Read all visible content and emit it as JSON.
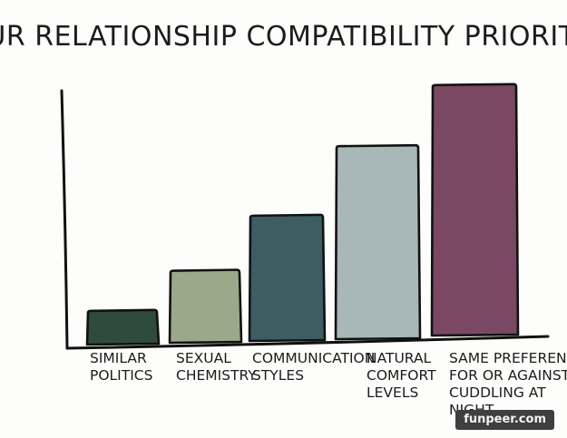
{
  "chart_data": {
    "type": "bar",
    "title": "YOUR RELATIONSHIP COMPATIBILITY PRIORITIES",
    "categories": [
      [
        "SIMILAR",
        "POLITICS"
      ],
      [
        "SEXUAL",
        "CHEMISTRY"
      ],
      [
        "COMMUNICATION",
        "STYLES"
      ],
      [
        "NATURAL",
        "COMFORT",
        "LEVELS"
      ],
      [
        "SAME PREFERENCE",
        "FOR OR AGAINST",
        "CUDDLING AT",
        "NIGHT"
      ]
    ],
    "values": [
      13,
      28,
      49,
      76,
      100
    ],
    "colors": [
      "#2f4b3e",
      "#9aa98a",
      "#3d5d63",
      "#a8b7b8",
      "#7a4862"
    ],
    "xlabel": "",
    "ylabel": "",
    "ylim": [
      0,
      105
    ],
    "grid": false
  },
  "watermark": "funpeer.com"
}
